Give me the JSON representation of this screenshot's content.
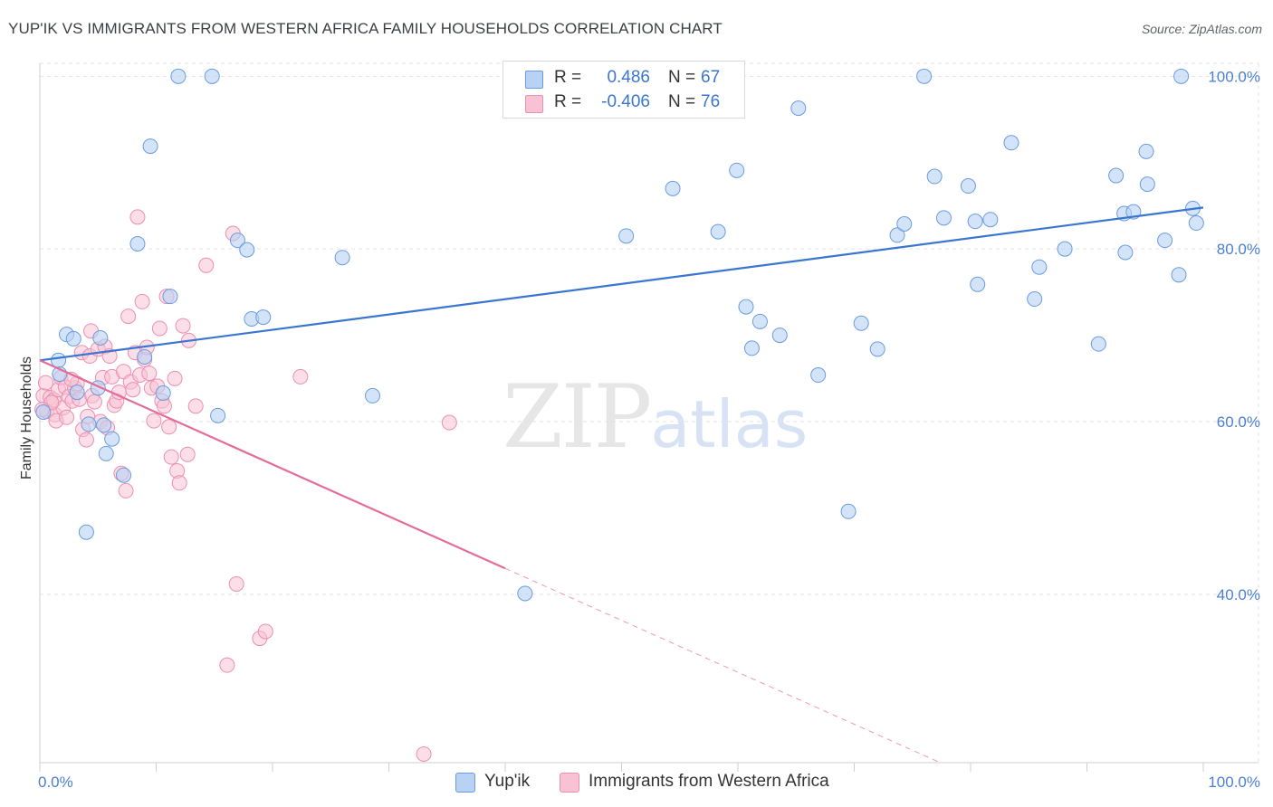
{
  "header": {
    "title": "YUP'IK VS IMMIGRANTS FROM WESTERN AFRICA FAMILY HOUSEHOLDS CORRELATION CHART",
    "source": "Source: ZipAtlas.com"
  },
  "watermark": {
    "zip": "ZIP",
    "atlas": "atlas"
  },
  "legend": {
    "rows": [
      {
        "r_label": "R =",
        "r_value": "0.486",
        "n_label": "N =",
        "n_value": "67"
      },
      {
        "r_label": "R =",
        "r_value": "-0.406",
        "n_label": "N =",
        "n_value": "76"
      }
    ]
  },
  "bottom_legend": {
    "series1": "Yup'ik",
    "series2": "Immigrants from Western Africa"
  },
  "colors": {
    "blue_fill": "#b8d2f3",
    "blue_stroke": "#6a9be0",
    "blue_line": "#3a76d0",
    "pink_fill": "#f7c3d4",
    "pink_stroke": "#ec8fb0",
    "pink_line": "#e36c98",
    "grid": "#e3e3e3"
  },
  "chart_data": {
    "type": "scatter",
    "title": "YUP'IK VS IMMIGRANTS FROM WESTERN AFRICA FAMILY HOUSEHOLDS CORRELATION CHART",
    "xlabel": "",
    "ylabel": "Family Households",
    "xlim": [
      0,
      100
    ],
    "ylim": [
      20.5,
      101.5
    ],
    "x_tick_labels": [
      "0.0%",
      "100.0%"
    ],
    "y_ticks": [
      40,
      60,
      80,
      100
    ],
    "y_tick_labels": [
      "40.0%",
      "60.0%",
      "80.0%",
      "100.0%"
    ],
    "grid": true,
    "series": [
      {
        "name": "Yup'ik",
        "R": 0.486,
        "N": 67,
        "trend": {
          "x0": 0,
          "y0": 67.1,
          "x1": 100,
          "y1": 84.8
        },
        "points": [
          [
            0.3,
            61.1
          ],
          [
            1.6,
            67.1
          ],
          [
            1.7,
            65.5
          ],
          [
            2.3,
            70.1
          ],
          [
            2.9,
            69.6
          ],
          [
            3.2,
            63.4
          ],
          [
            4.0,
            47.2
          ],
          [
            4.2,
            59.7
          ],
          [
            5.0,
            63.9
          ],
          [
            5.2,
            69.7
          ],
          [
            5.5,
            59.6
          ],
          [
            5.7,
            56.3
          ],
          [
            6.2,
            58.0
          ],
          [
            7.2,
            53.8
          ],
          [
            8.4,
            80.6
          ],
          [
            9.0,
            67.5
          ],
          [
            9.5,
            91.9
          ],
          [
            10.6,
            63.3
          ],
          [
            11.2,
            74.5
          ],
          [
            11.9,
            100.0
          ],
          [
            14.8,
            100.0
          ],
          [
            15.3,
            60.7
          ],
          [
            17.0,
            81.0
          ],
          [
            17.8,
            79.9
          ],
          [
            18.2,
            71.9
          ],
          [
            19.2,
            72.1
          ],
          [
            26.0,
            79.0
          ],
          [
            28.6,
            63.0
          ],
          [
            41.7,
            40.1
          ],
          [
            50.4,
            81.5
          ],
          [
            54.4,
            87.0
          ],
          [
            58.3,
            82.0
          ],
          [
            59.9,
            89.1
          ],
          [
            60.7,
            73.3
          ],
          [
            61.2,
            68.5
          ],
          [
            61.9,
            71.6
          ],
          [
            63.6,
            70.0
          ],
          [
            65.2,
            96.3
          ],
          [
            66.9,
            65.4
          ],
          [
            69.5,
            49.6
          ],
          [
            70.6,
            71.4
          ],
          [
            72.0,
            68.4
          ],
          [
            73.7,
            81.6
          ],
          [
            74.3,
            82.9
          ],
          [
            76.0,
            100.0
          ],
          [
            76.9,
            88.4
          ],
          [
            77.7,
            83.6
          ],
          [
            79.8,
            87.3
          ],
          [
            80.4,
            83.2
          ],
          [
            80.6,
            75.9
          ],
          [
            81.7,
            83.4
          ],
          [
            83.5,
            92.3
          ],
          [
            85.5,
            74.2
          ],
          [
            85.9,
            77.9
          ],
          [
            88.1,
            80.0
          ],
          [
            91.0,
            69.0
          ],
          [
            92.5,
            88.5
          ],
          [
            93.2,
            84.1
          ],
          [
            93.3,
            79.6
          ],
          [
            94.0,
            84.3
          ],
          [
            95.1,
            91.3
          ],
          [
            95.2,
            87.5
          ],
          [
            96.7,
            81.0
          ],
          [
            97.9,
            77.0
          ],
          [
            98.1,
            100.0
          ],
          [
            99.1,
            84.7
          ],
          [
            99.4,
            83.0
          ]
        ]
      },
      {
        "name": "Immigrants from Western Africa",
        "R": -0.406,
        "N": 76,
        "trend": {
          "x0": 0,
          "y0": 67.1,
          "x1": 40.0,
          "y1": 43.0
        },
        "trend_dashed": {
          "x0": 40.0,
          "y0": 43.0,
          "x1": 77.4,
          "y1": 20.5
        },
        "points": [
          [
            0.3,
            63.0
          ],
          [
            0.5,
            64.5
          ],
          [
            0.6,
            61.2
          ],
          [
            0.9,
            62.8
          ],
          [
            1.2,
            62.5
          ],
          [
            1.3,
            60.8
          ],
          [
            1.4,
            60.1
          ],
          [
            1.6,
            63.7
          ],
          [
            1.8,
            65.1
          ],
          [
            2.0,
            61.6
          ],
          [
            2.2,
            64.0
          ],
          [
            2.3,
            60.5
          ],
          [
            2.5,
            62.9
          ],
          [
            2.8,
            62.4
          ],
          [
            3.0,
            63.9
          ],
          [
            3.2,
            64.4
          ],
          [
            3.4,
            62.6
          ],
          [
            3.6,
            68.0
          ],
          [
            3.7,
            59.1
          ],
          [
            4.0,
            57.9
          ],
          [
            4.3,
            67.6
          ],
          [
            4.4,
            70.5
          ],
          [
            4.5,
            63.0
          ],
          [
            4.7,
            62.3
          ],
          [
            5.0,
            68.4
          ],
          [
            5.2,
            60.0
          ],
          [
            5.4,
            65.1
          ],
          [
            5.6,
            68.7
          ],
          [
            5.8,
            59.3
          ],
          [
            6.0,
            67.6
          ],
          [
            6.2,
            65.2
          ],
          [
            6.4,
            61.9
          ],
          [
            6.6,
            62.4
          ],
          [
            6.8,
            63.4
          ],
          [
            7.0,
            54.0
          ],
          [
            7.2,
            65.8
          ],
          [
            7.4,
            52.0
          ],
          [
            7.6,
            72.2
          ],
          [
            7.8,
            64.6
          ],
          [
            8.0,
            63.7
          ],
          [
            8.2,
            68.0
          ],
          [
            8.4,
            83.7
          ],
          [
            8.6,
            65.4
          ],
          [
            8.8,
            73.9
          ],
          [
            9.0,
            67.2
          ],
          [
            9.2,
            68.6
          ],
          [
            9.4,
            65.6
          ],
          [
            9.6,
            63.9
          ],
          [
            9.8,
            60.1
          ],
          [
            10.1,
            64.1
          ],
          [
            10.3,
            70.8
          ],
          [
            10.5,
            62.4
          ],
          [
            10.7,
            61.8
          ],
          [
            10.9,
            74.5
          ],
          [
            11.1,
            59.4
          ],
          [
            11.3,
            55.9
          ],
          [
            11.6,
            65.0
          ],
          [
            11.8,
            54.3
          ],
          [
            12.0,
            52.9
          ],
          [
            12.3,
            71.1
          ],
          [
            12.7,
            56.2
          ],
          [
            12.8,
            69.4
          ],
          [
            13.4,
            61.8
          ],
          [
            14.3,
            78.1
          ],
          [
            16.1,
            31.8
          ],
          [
            16.6,
            81.8
          ],
          [
            16.9,
            41.2
          ],
          [
            18.9,
            34.9
          ],
          [
            19.4,
            35.7
          ],
          [
            22.4,
            65.2
          ],
          [
            33.0,
            21.5
          ],
          [
            35.2,
            59.9
          ],
          [
            4.1,
            60.6
          ],
          [
            2.7,
            64.9
          ],
          [
            1.0,
            62.2
          ],
          [
            0.2,
            61.4
          ]
        ]
      }
    ]
  }
}
